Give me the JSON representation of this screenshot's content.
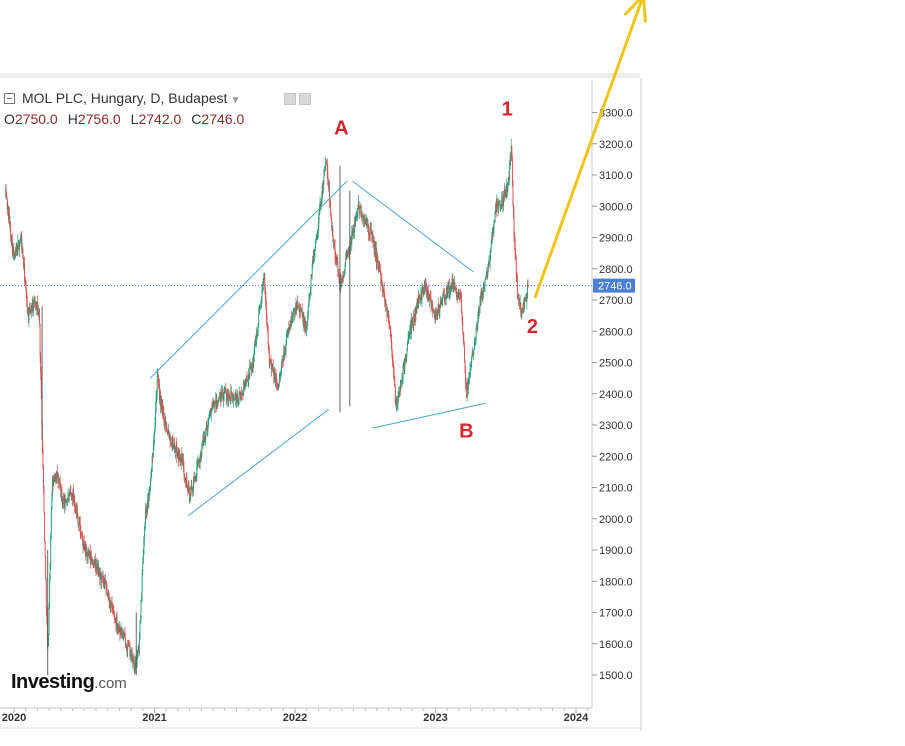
{
  "legend": {
    "title": "MOL PLC, Hungary, D, Budapest",
    "open_label": "O",
    "open": "2750.0",
    "high_label": "H",
    "high": "2756.0",
    "low_label": "L",
    "low": "2742.0",
    "close_label": "C",
    "close": "2746.0",
    "icons": [
      "visibility-icon",
      "settings-icon"
    ]
  },
  "logo": {
    "text": "Investing",
    "suffix": ".com"
  },
  "colors": {
    "up": "#2a9d78",
    "down": "#d9534f",
    "trendline": "#4aa3d8",
    "wave_label": "#d9262e",
    "projection": "#f0c419",
    "price_tag": "#4a7fd6"
  },
  "chart_data": {
    "type": "candlestick",
    "title": "MOL PLC, Hungary, D, Budapest",
    "xlabel": "",
    "ylabel": "",
    "x_ticks": [
      "2020",
      "2021",
      "2022",
      "2023",
      "2024"
    ],
    "y_ticks": [
      "1500.0",
      "1600.0",
      "1700.0",
      "1800.0",
      "1900.0",
      "2000.0",
      "2100.0",
      "2200.0",
      "2300.0",
      "2400.0",
      "2500.0",
      "2600.0",
      "2700.0",
      "2800.0",
      "2900.0",
      "3000.0",
      "3100.0",
      "3200.0",
      "3300.0"
    ],
    "ylim": [
      1420,
      3330
    ],
    "xlim": [
      2019.93,
      2024.12
    ],
    "last_price": "2746.0",
    "series_path": [
      [
        2019.94,
        3050
      ],
      [
        2020.0,
        2830
      ],
      [
        2020.05,
        2900
      ],
      [
        2020.1,
        2650
      ],
      [
        2020.15,
        2700
      ],
      [
        2020.18,
        2650
      ],
      [
        2020.2,
        2280
      ],
      [
        2020.22,
        1900
      ],
      [
        2020.24,
        1550
      ],
      [
        2020.27,
        2100
      ],
      [
        2020.3,
        2150
      ],
      [
        2020.35,
        2050
      ],
      [
        2020.42,
        2080
      ],
      [
        2020.5,
        1900
      ],
      [
        2020.58,
        1850
      ],
      [
        2020.65,
        1780
      ],
      [
        2020.72,
        1680
      ],
      [
        2020.78,
        1620
      ],
      [
        2020.83,
        1570
      ],
      [
        2020.86,
        1520
      ],
      [
        2020.89,
        1590
      ],
      [
        2020.93,
        2000
      ],
      [
        2020.97,
        2100
      ],
      [
        2021.0,
        2300
      ],
      [
        2021.02,
        2450
      ],
      [
        2021.05,
        2350
      ],
      [
        2021.12,
        2250
      ],
      [
        2021.2,
        2180
      ],
      [
        2021.25,
        2070
      ],
      [
        2021.3,
        2150
      ],
      [
        2021.4,
        2350
      ],
      [
        2021.5,
        2400
      ],
      [
        2021.6,
        2380
      ],
      [
        2021.7,
        2500
      ],
      [
        2021.78,
        2780
      ],
      [
        2021.82,
        2500
      ],
      [
        2021.88,
        2420
      ],
      [
        2021.95,
        2600
      ],
      [
        2022.02,
        2700
      ],
      [
        2022.08,
        2600
      ],
      [
        2022.12,
        2800
      ],
      [
        2022.18,
        3000
      ],
      [
        2022.22,
        3150
      ],
      [
        2022.27,
        2900
      ],
      [
        2022.32,
        2750
      ],
      [
        2022.38,
        2850
      ],
      [
        2022.45,
        3000
      ],
      [
        2022.55,
        2900
      ],
      [
        2022.62,
        2750
      ],
      [
        2022.68,
        2600
      ],
      [
        2022.72,
        2350
      ],
      [
        2022.76,
        2450
      ],
      [
        2022.82,
        2600
      ],
      [
        2022.88,
        2700
      ],
      [
        2022.93,
        2750
      ],
      [
        2023.0,
        2650
      ],
      [
        2023.05,
        2700
      ],
      [
        2023.12,
        2750
      ],
      [
        2023.18,
        2700
      ],
      [
        2023.22,
        2400
      ],
      [
        2023.27,
        2550
      ],
      [
        2023.32,
        2700
      ],
      [
        2023.38,
        2820
      ],
      [
        2023.43,
        3000
      ],
      [
        2023.48,
        3020
      ],
      [
        2023.52,
        3080
      ],
      [
        2023.54,
        3180
      ],
      [
        2023.56,
        2900
      ],
      [
        2023.58,
        2750
      ],
      [
        2023.61,
        2650
      ],
      [
        2023.64,
        2700
      ],
      [
        2023.66,
        2746
      ]
    ],
    "annotations": {
      "wave_labels": [
        {
          "text": "A",
          "x": 2022.33,
          "y": 3230
        },
        {
          "text": "1",
          "x": 2023.51,
          "y": 3290
        },
        {
          "text": "B",
          "x": 2023.22,
          "y": 2260
        },
        {
          "text": "2",
          "x": 2023.69,
          "y": 2595
        }
      ],
      "trendlines": [
        {
          "from": [
            2020.97,
            2450
          ],
          "to": [
            2022.37,
            3080
          ]
        },
        {
          "from": [
            2021.24,
            2010
          ],
          "to": [
            2022.24,
            2350
          ]
        },
        {
          "from": [
            2022.41,
            3080
          ],
          "to": [
            2023.27,
            2790
          ]
        },
        {
          "from": [
            2022.55,
            2290
          ],
          "to": [
            2023.36,
            2370
          ]
        }
      ],
      "projection_arrow": {
        "from": [
          2023.71,
          2710
        ],
        "to": [
          2024.48,
          3675
        ]
      }
    }
  }
}
